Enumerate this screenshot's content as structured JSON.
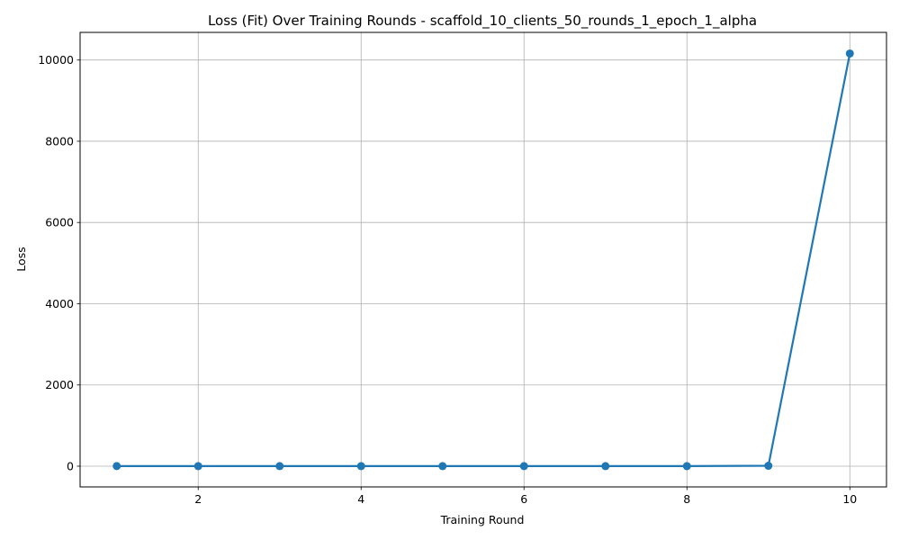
{
  "chart_data": {
    "type": "line",
    "title": "Loss (Fit) Over Training Rounds  - scaffold_10_clients_50_rounds_1_epoch_1_alpha",
    "xlabel": "Training Round",
    "ylabel": "Loss",
    "xlim": [
      0.55,
      10.45
    ],
    "ylim": [
      -510,
      10680
    ],
    "xticks": [
      2,
      4,
      6,
      8,
      10
    ],
    "yticks": [
      0,
      2000,
      4000,
      6000,
      8000,
      10000
    ],
    "grid": true,
    "marker": "circle",
    "color": "#1f77b4",
    "series": [
      {
        "x": [
          1,
          2,
          3,
          4,
          5,
          6,
          7,
          8,
          9,
          10
        ],
        "values": [
          2.3,
          2.1,
          2.0,
          2.0,
          1.9,
          1.9,
          1.8,
          1.8,
          10,
          10160
        ]
      }
    ]
  }
}
